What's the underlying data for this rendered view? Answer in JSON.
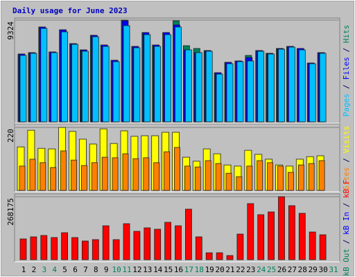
{
  "chart_data": [
    {
      "type": "bar",
      "title": "Daily usage for June 2023",
      "categories": [
        "1",
        "2",
        "3",
        "4",
        "5",
        "6",
        "7",
        "8",
        "9",
        "10",
        "11",
        "12",
        "13",
        "14",
        "15",
        "16",
        "17",
        "18",
        "19",
        "20",
        "21",
        "22",
        "23",
        "24",
        "25",
        "26",
        "27",
        "28",
        "29",
        "30",
        "31"
      ],
      "category_colors": [
        "#000000",
        "#000000",
        "#00805c",
        "#00805c",
        "#000000",
        "#000000",
        "#000000",
        "#000000",
        "#000000",
        "#00805c",
        "#00805c",
        "#000000",
        "#000000",
        "#000000",
        "#000000",
        "#000000",
        "#00805c",
        "#00805c",
        "#000000",
        "#000000",
        "#000000",
        "#000000",
        "#000000",
        "#00805c",
        "#00805c",
        "#000000",
        "#000000",
        "#000000",
        "#000000",
        "#000000",
        "#00805c"
      ],
      "series": [
        {
          "name": "Hits",
          "color": "#00805c",
          "values": [
            6216,
            6343,
            8690,
            6406,
            8436,
            7168,
            6597,
            7929,
            7041,
            5645,
            9324,
            6914,
            8182,
            7041,
            8182,
            9261,
            6977,
            6724,
            6533,
            4504,
            5455,
            5582,
            6089,
            6533,
            6280,
            6724,
            6914,
            6724,
            5392,
            6343,
            null
          ]
        },
        {
          "name": "Files",
          "color": "#0000ff",
          "values": [
            6216,
            6343,
            8690,
            6406,
            8436,
            7168,
            6597,
            7929,
            7041,
            5645,
            9261,
            6914,
            8182,
            7041,
            8182,
            8880,
            6597,
            6343,
            6533,
            4504,
            5455,
            5582,
            5899,
            6533,
            6280,
            6724,
            6914,
            6724,
            5392,
            6343,
            null
          ]
        },
        {
          "name": "Pages",
          "color": "#00c0ff",
          "values": [
            6089,
            6280,
            8563,
            6343,
            8245,
            7104,
            6470,
            7802,
            6914,
            5518,
            8817,
            6787,
            7992,
            6914,
            7992,
            8690,
            6597,
            6343,
            6470,
            4377,
            5328,
            5518,
            5582,
            6470,
            6216,
            6660,
            6850,
            6597,
            5328,
            6280,
            null
          ]
        }
      ],
      "ylim": [
        0,
        9324
      ],
      "yticks": [
        9324
      ]
    },
    {
      "type": "bar",
      "series": [
        {
          "name": "Visits",
          "color": "#ffff00",
          "values": [
            152,
            210,
            147,
            145,
            220,
            206,
            179,
            162,
            215,
            164,
            208,
            189,
            191,
            191,
            203,
            203,
            116,
            102,
            145,
            128,
            89,
            85,
            140,
            126,
            109,
            89,
            85,
            109,
            118,
            121,
            null
          ]
        },
        {
          "name": "Sites",
          "color": "#ff8000",
          "values": [
            85,
            109,
            97,
            80,
            138,
            106,
            87,
            97,
            116,
            114,
            128,
            111,
            114,
            97,
            135,
            150,
            85,
            82,
            104,
            94,
            60,
            48,
            85,
            104,
            97,
            85,
            63,
            89,
            94,
            104,
            null
          ]
        }
      ],
      "ylim": [
        0,
        220
      ],
      "yticks": [
        220
      ]
    },
    {
      "type": "bar",
      "series": [
        {
          "name": "kB F",
          "color": "#ff0000",
          "values": [
            88410,
            97251,
            103145,
            94304,
            114933,
            94304,
            79569,
            85463,
            144403,
            85463,
            153244,
            120827,
            135562,
            129668,
            159138,
            144403,
            215131,
            97251,
            29470,
            29470,
            17682,
            109039,
            238707,
            191555,
            203343,
            268175,
            229866,
            197449,
            117880,
            106092,
            null
          ]
        },
        {
          "name": "kB In",
          "color": "#0000ff",
          "values": [
            null,
            null,
            null,
            null,
            null,
            null,
            null,
            null,
            null,
            null,
            null,
            null,
            null,
            null,
            null,
            null,
            null,
            null,
            null,
            null,
            null,
            null,
            null,
            null,
            null,
            null,
            null,
            null,
            null,
            null,
            null
          ]
        },
        {
          "name": "kB Out",
          "color": "#00805c",
          "values": [
            null,
            null,
            null,
            null,
            null,
            null,
            null,
            null,
            null,
            null,
            null,
            null,
            null,
            null,
            null,
            null,
            null,
            null,
            null,
            null,
            null,
            null,
            null,
            null,
            null,
            null,
            null,
            null,
            null,
            null,
            null
          ]
        }
      ],
      "ylim": [
        0,
        268175
      ],
      "yticks": [
        268175
      ]
    }
  ]
}
